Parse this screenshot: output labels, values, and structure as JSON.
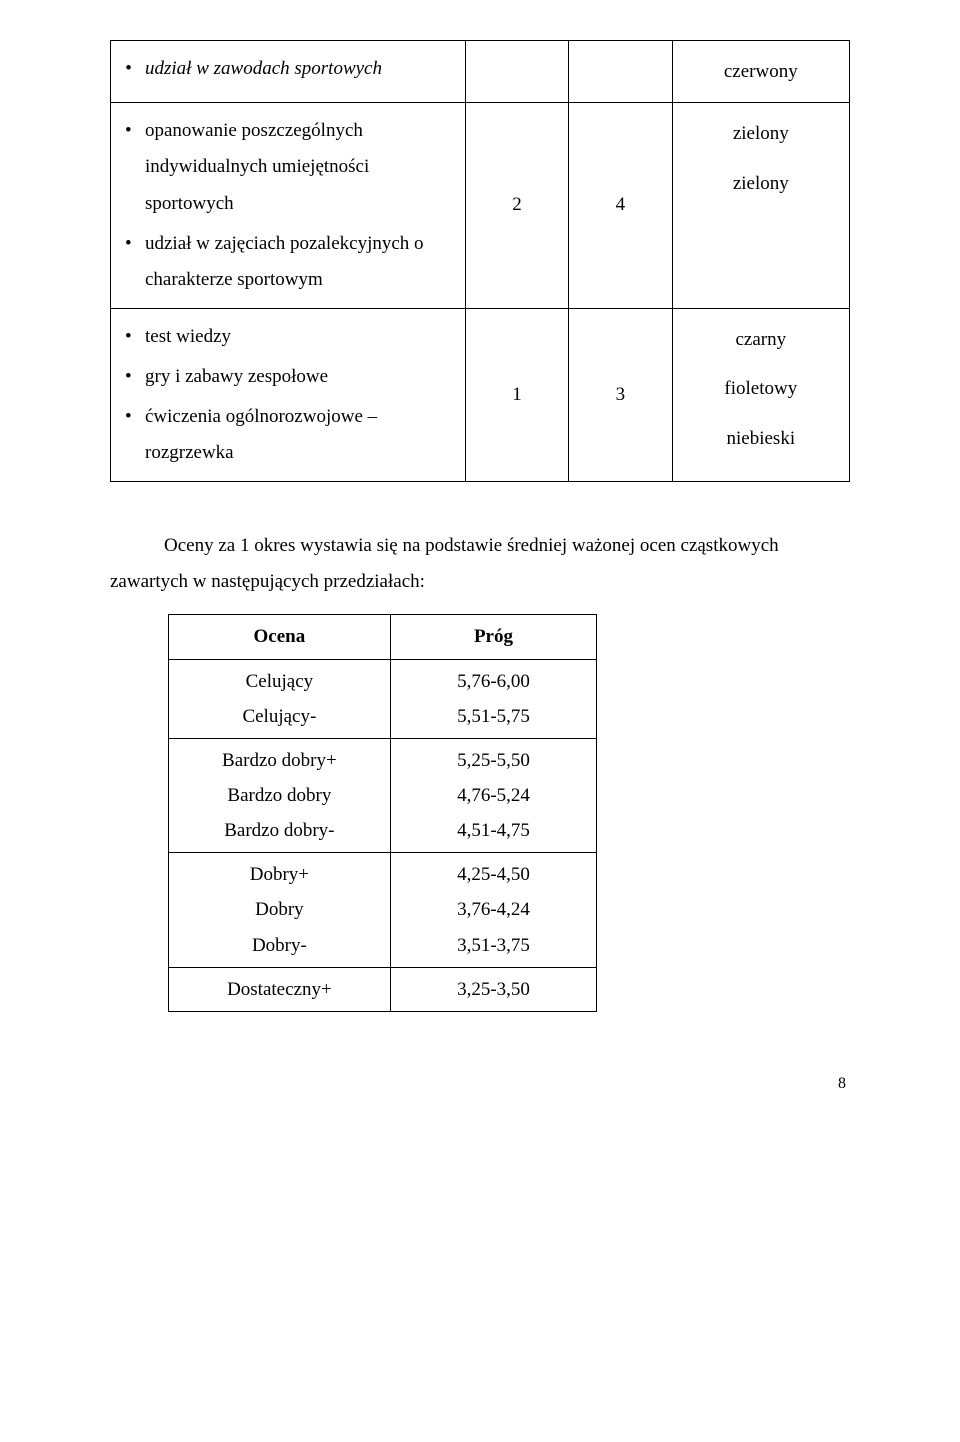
{
  "mainTable": {
    "rows": [
      {
        "items": [
          {
            "text": "udział w zawodach sportowych",
            "italic": true
          }
        ],
        "n1": "",
        "n2": "",
        "colors": [
          "czerwony"
        ]
      },
      {
        "items": [
          {
            "text": "opanowanie poszczególnych indywidualnych umiejętności sportowych"
          },
          {
            "text": "udział w zajęciach pozalekcyjnych o charakterze sportowym"
          }
        ],
        "n1": "2",
        "n2": "4",
        "colors": [
          "zielony",
          "zielony"
        ]
      },
      {
        "items": [
          {
            "text": "test wiedzy"
          },
          {
            "text": "gry i zabawy zespołowe"
          },
          {
            "text": "ćwiczenia ogólnorozwojowe – rozgrzewka"
          }
        ],
        "n1": "1",
        "n2": "3",
        "colors": [
          "czarny",
          "fioletowy",
          "niebieski"
        ]
      }
    ]
  },
  "paragraph": "Oceny za 1 okres wystawia się na podstawie średniej ważonej ocen cząstkowych zawartych w następujących przedziałach:",
  "gradeTable": {
    "header": {
      "label": "Ocena",
      "range": "Próg"
    },
    "groups": [
      [
        {
          "label": "Celujący",
          "range": "5,76-6,00"
        },
        {
          "label": "Celujący-",
          "range": "5,51-5,75"
        }
      ],
      [
        {
          "label": "Bardzo dobry+",
          "range": "5,25-5,50"
        },
        {
          "label": "Bardzo dobry",
          "range": "4,76-5,24"
        },
        {
          "label": "Bardzo dobry-",
          "range": "4,51-4,75"
        }
      ],
      [
        {
          "label": "Dobry+",
          "range": "4,25-4,50"
        },
        {
          "label": "Dobry",
          "range": "3,76-4,24"
        },
        {
          "label": "Dobry-",
          "range": "3,51-3,75"
        }
      ],
      [
        {
          "label": "Dostateczny+",
          "range": "3,25-3,50"
        }
      ]
    ]
  },
  "pageNumber": "8"
}
